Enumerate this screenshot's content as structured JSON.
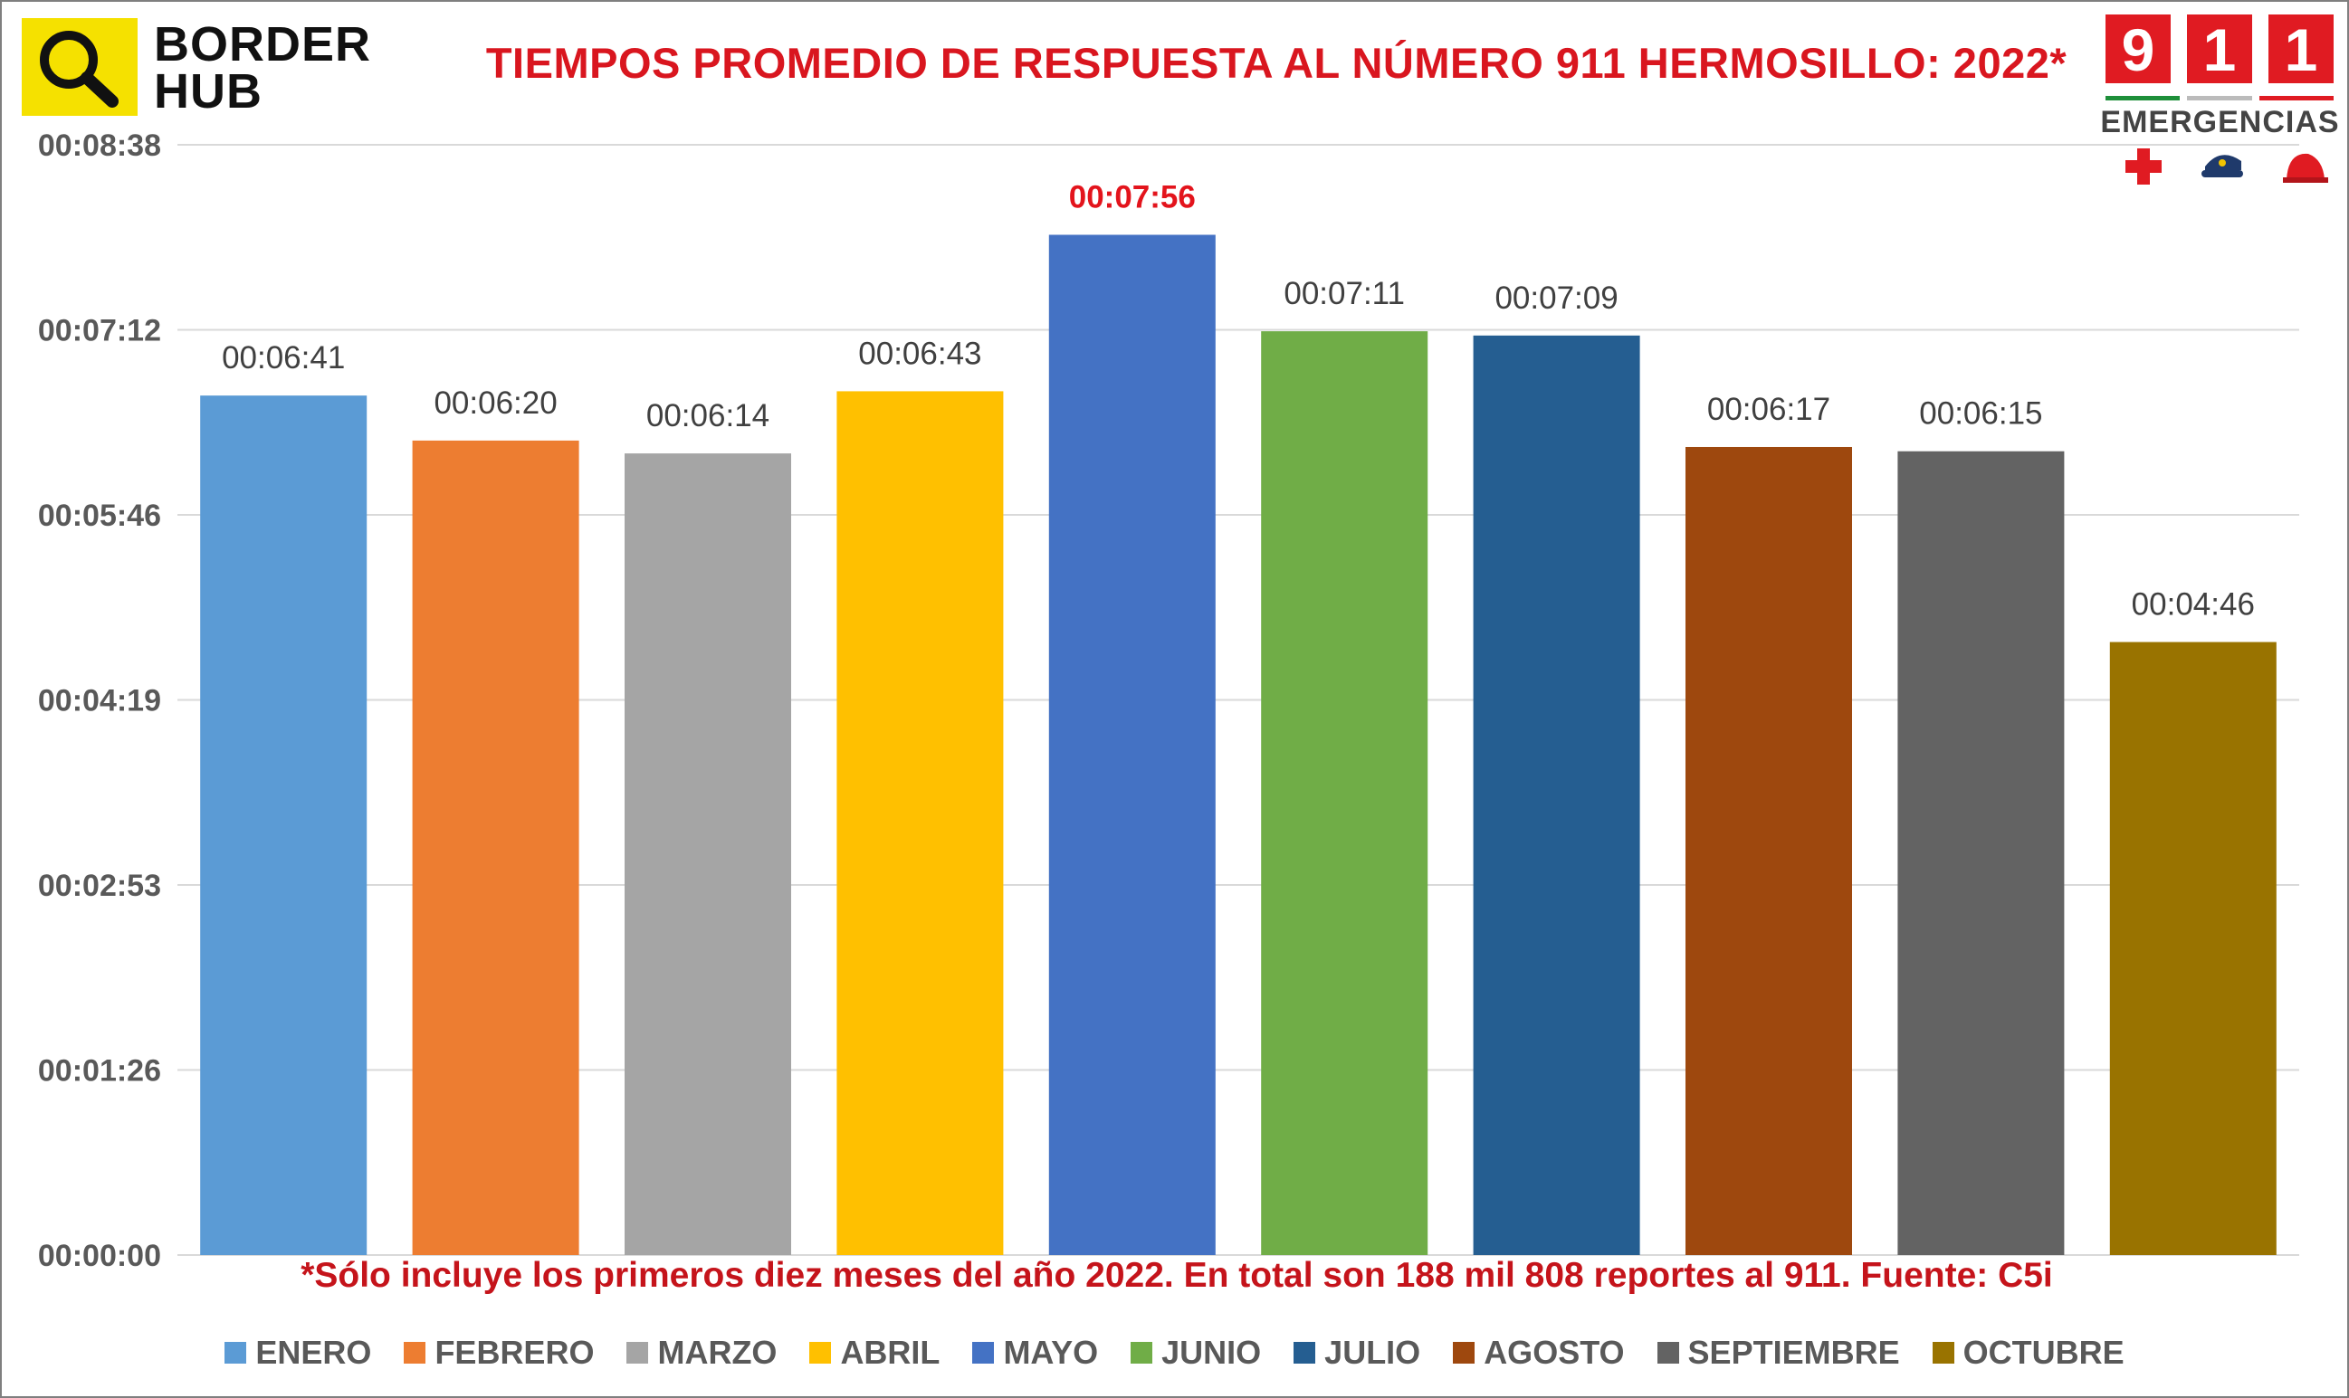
{
  "header": {
    "brand_line1": "BORDER",
    "brand_line2": "HUB",
    "brand_icon": "magnifier-icon",
    "emergency_digits": [
      "9",
      "1",
      "1"
    ],
    "emergency_label": "EMERGENCIAS",
    "emergency_icons": [
      "red-cross-icon",
      "police-cap-icon",
      "fire-helmet-icon"
    ]
  },
  "chart_data": {
    "type": "bar",
    "title": "TIEMPOS PROMEDIO DE RESPUESTA AL NÚMERO 911 HERMOSILLO: 2022*",
    "categories": [
      "ENERO",
      "FEBRERO",
      "MARZO",
      "ABRIL",
      "MAYO",
      "JUNIO",
      "JULIO",
      "AGOSTO",
      "SEPTIEMBRE",
      "OCTUBRE"
    ],
    "values": [
      "00:06:41",
      "00:06:20",
      "00:06:14",
      "00:06:43",
      "00:07:56",
      "00:07:11",
      "00:07:09",
      "00:06:17",
      "00:06:15",
      "00:04:46"
    ],
    "values_seconds": [
      401,
      380,
      374,
      403,
      476,
      431,
      429,
      377,
      375,
      286
    ],
    "colors": [
      "#5b9bd5",
      "#ed7d31",
      "#a5a5a5",
      "#ffc000",
      "#4472c4",
      "#70ad47",
      "#255e91",
      "#9e480e",
      "#636363",
      "#997300"
    ],
    "highlight_index": 4,
    "highlight_color": "#e3141c",
    "yticks": [
      "00:00:00",
      "00:01:26",
      "00:02:53",
      "00:04:19",
      "00:05:46",
      "00:07:12",
      "00:08:38"
    ],
    "ylim_seconds": [
      0,
      518
    ],
    "grid": true,
    "legend_position": "bottom",
    "xlabel": "",
    "ylabel": "",
    "footnote": "*Sólo incluye los primeros diez meses del año 2022. En total son 188 mil 808 reportes al 911. Fuente: C5i"
  }
}
